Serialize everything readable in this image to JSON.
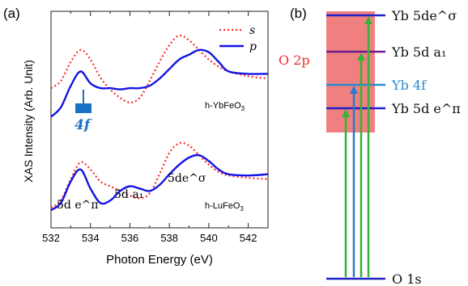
{
  "panel_labels": {
    "left": "(a)",
    "right": "(b)"
  },
  "colors": {
    "s_series": "#ff2a2a",
    "p_series": "#1414e6",
    "arrow_4f": "#1a72c4",
    "label_4f": "#1a72c4",
    "o2p_band": "#f08080",
    "o2p_label": "#e8302a",
    "level_yb5d_sigma": "#2020c8",
    "level_yb5d_a1": "#6a1a8a",
    "level_yb4f": "#2a8ad0",
    "level_yb5d_pi": "#2020c8",
    "level_o1s": "#2020c8",
    "green_transition": "#33b533",
    "blue_transition": "#2a7ad0"
  },
  "chart_data": {
    "type": "line",
    "xlabel": "Photon Energy (eV)",
    "ylabel": "XAS Intensity (Arb. Unit)",
    "xlim": [
      532,
      543
    ],
    "xticks": [
      "532",
      "534",
      "536",
      "538",
      "540",
      "542"
    ],
    "legend": {
      "placement": "top-right",
      "entries": [
        "s",
        "p"
      ]
    },
    "samples": [
      {
        "name": "h-YbFeO3",
        "series": [
          {
            "name": "s",
            "style": "dotted",
            "x": [
              532,
              532.5,
              533,
              533.5,
              534,
              534.5,
              535,
              535.5,
              536,
              536.5,
              537,
              537.5,
              538,
              538.5,
              539,
              539.5,
              540,
              540.5,
              541,
              542,
              543
            ],
            "y": [
              1.06,
              1.12,
              1.28,
              1.38,
              1.3,
              1.15,
              1.05,
              0.98,
              0.94,
              0.98,
              1.12,
              1.28,
              1.42,
              1.5,
              1.46,
              1.38,
              1.3,
              1.24,
              1.2,
              1.16,
              1.14
            ]
          },
          {
            "name": "p",
            "style": "solid",
            "x": [
              532,
              532.5,
              533,
              533.5,
              534,
              534.5,
              535,
              535.5,
              536,
              536.5,
              537,
              537.5,
              538,
              538.5,
              539,
              539.5,
              540,
              540.5,
              541,
              542,
              543
            ],
            "y": [
              0.82,
              0.9,
              1.08,
              1.2,
              1.1,
              1.06,
              1.06,
              1.05,
              1.06,
              1.06,
              1.08,
              1.14,
              1.22,
              1.3,
              1.34,
              1.38,
              1.36,
              1.28,
              1.2,
              1.18,
              1.18
            ]
          }
        ]
      },
      {
        "name": "h-LuFeO3",
        "series": [
          {
            "name": "s",
            "style": "dotted",
            "x": [
              532,
              532.5,
              533,
              533.5,
              534,
              534.5,
              535,
              535.5,
              536,
              536.5,
              537,
              537.5,
              538,
              538.5,
              539,
              539.5,
              540,
              540.5,
              541,
              542,
              543
            ],
            "y": [
              0.06,
              0.12,
              0.3,
              0.44,
              0.38,
              0.28,
              0.24,
              0.2,
              0.16,
              0.14,
              0.18,
              0.34,
              0.52,
              0.6,
              0.58,
              0.5,
              0.42,
              0.36,
              0.33,
              0.31,
              0.3
            ]
          },
          {
            "name": "p",
            "style": "solid",
            "x": [
              532,
              532.5,
              533,
              533.5,
              534,
              534.5,
              535,
              535.5,
              536,
              536.5,
              537,
              537.5,
              538,
              538.5,
              539,
              539.5,
              540,
              540.5,
              541,
              542,
              543
            ],
            "y": [
              0.04,
              0.1,
              0.28,
              0.38,
              0.22,
              0.1,
              0.12,
              0.2,
              0.24,
              0.22,
              0.2,
              0.25,
              0.34,
              0.42,
              0.48,
              0.5,
              0.45,
              0.38,
              0.34,
              0.33,
              0.34
            ]
          }
        ]
      }
    ],
    "annotations": {
      "peak_5d_pi": "5d e^π",
      "peak_5d_a1": "5d a₁",
      "peak_5d_sigma": "5de^σ",
      "arrow_4f": "4f"
    }
  },
  "energy_levels": {
    "band": "O 2p",
    "levels": [
      {
        "id": "yb5d_sigma",
        "label": "Yb 5de^σ"
      },
      {
        "id": "yb5d_a1",
        "label": "Yb 5d a₁"
      },
      {
        "id": "yb4f",
        "label": "Yb 4f"
      },
      {
        "id": "yb5d_pi",
        "label": "Yb 5d e^π"
      },
      {
        "id": "o1s",
        "label": "O 1s"
      }
    ]
  }
}
